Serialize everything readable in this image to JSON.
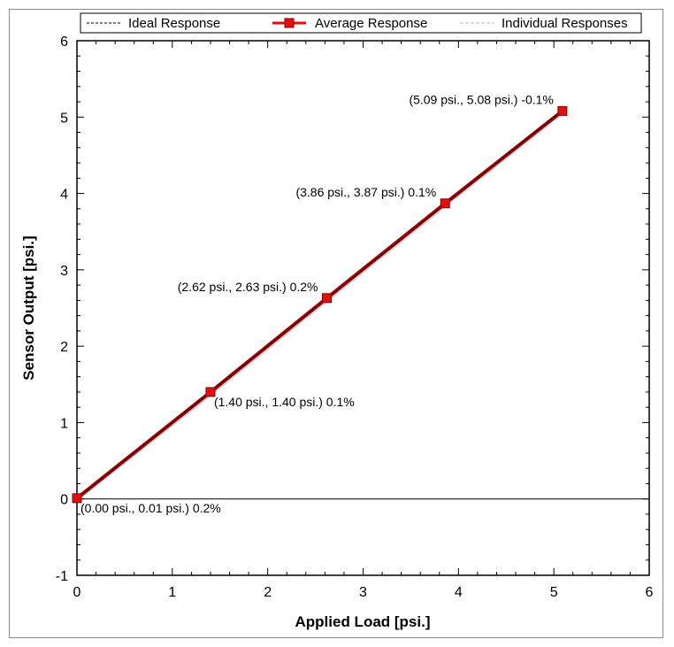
{
  "chart_data": {
    "type": "line",
    "xlabel": "Applied Load [psi.]",
    "ylabel": "Sensor Output [psi.]",
    "xlim": [
      0,
      6
    ],
    "ylim": [
      -1,
      6
    ],
    "xticks": [
      "0",
      "1",
      "2",
      "3",
      "4",
      "5",
      "6"
    ],
    "yticks": [
      "-1",
      "0",
      "1",
      "2",
      "3",
      "4",
      "5",
      "6"
    ],
    "grid": false,
    "legend_position": "top",
    "series": [
      {
        "name": "Ideal Response",
        "style": "dashed",
        "color": "#000000",
        "x": [
          0,
          5.09
        ],
        "y": [
          0,
          5.09
        ]
      },
      {
        "name": "Average Response",
        "style": "solid-square",
        "color": "#e01010",
        "x": [
          0.0,
          1.4,
          2.62,
          3.86,
          5.09
        ],
        "y": [
          0.01,
          1.4,
          2.63,
          3.87,
          5.08
        ]
      },
      {
        "name": "Individual Responses",
        "style": "light",
        "color": "#d4cfd6",
        "x": [
          0.0,
          1.4,
          2.62,
          3.86,
          5.09
        ],
        "y": [
          0.0,
          1.38,
          2.61,
          3.85,
          5.07
        ]
      }
    ],
    "annotations": [
      {
        "text": "(0.00 psi., 0.01 psi.) 0.2%",
        "x": 0.0,
        "y": 0.01,
        "placement": "below-right"
      },
      {
        "text": "(1.40 psi., 1.40 psi.) 0.1%",
        "x": 1.4,
        "y": 1.4,
        "placement": "below-right"
      },
      {
        "text": "(2.62 psi., 2.63 psi.) 0.2%",
        "x": 2.62,
        "y": 2.63,
        "placement": "above-left"
      },
      {
        "text": "(3.86 psi., 3.87 psi.) 0.1%",
        "x": 3.86,
        "y": 3.87,
        "placement": "above-left"
      },
      {
        "text": "(5.09 psi., 5.08 psi.) -0.1%",
        "x": 5.09,
        "y": 5.08,
        "placement": "above-left"
      }
    ]
  }
}
